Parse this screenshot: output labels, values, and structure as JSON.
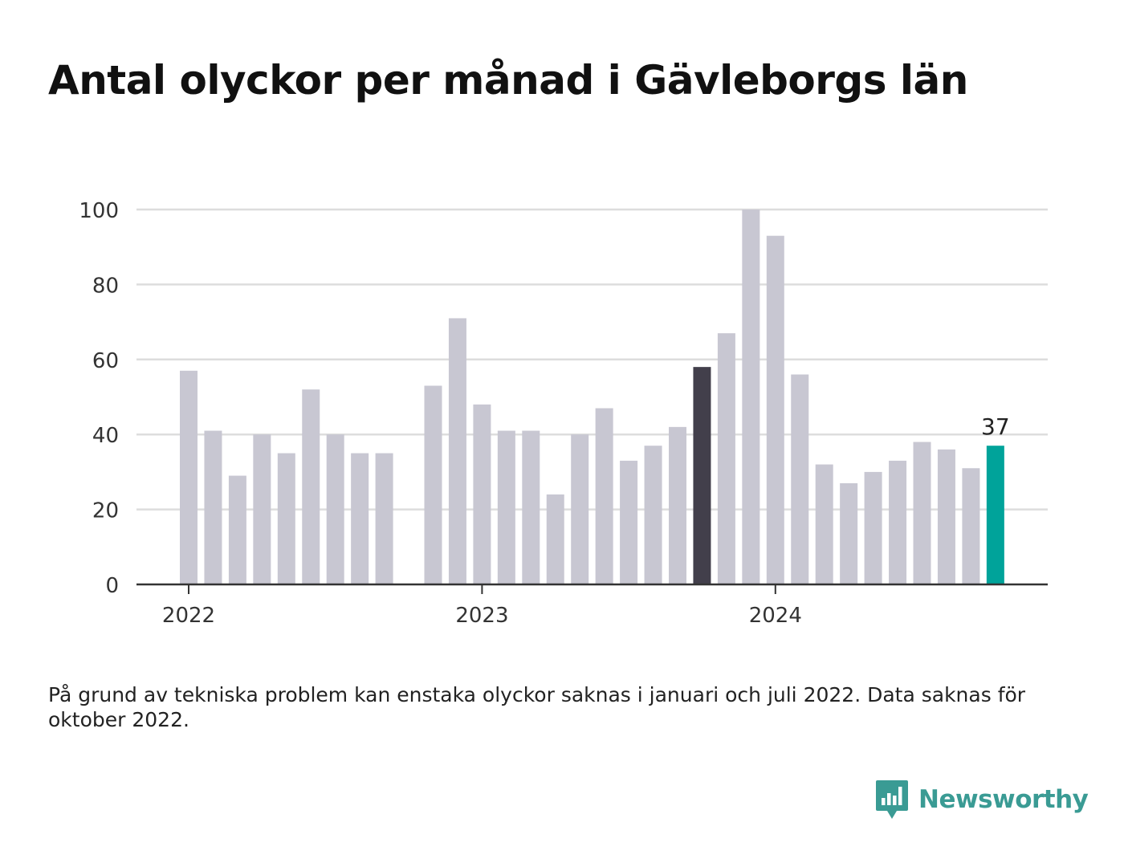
{
  "title": "Antal olyckor per månad i Gävleborgs län",
  "footnote": "På grund av tekniska problem kan enstaka olyckor saknas i januari och juli 2022. Data saknas för oktober 2022.",
  "brand": {
    "name": "Newsworthy",
    "color": "#3a9b94",
    "icon": "bar-chart-speech-bubble-icon"
  },
  "colors": {
    "bar_default": "#c8c7d2",
    "bar_previous_year": "#423f4b",
    "bar_latest": "#00a39a",
    "gridline": "#dddddd",
    "baseline": "#333333"
  },
  "chart_data": {
    "type": "bar",
    "title": "Antal olyckor per månad i Gävleborgs län",
    "xlabel": "",
    "ylabel": "",
    "ylim": [
      0,
      100
    ],
    "yticks": [
      0,
      20,
      40,
      60,
      80,
      100
    ],
    "grid": true,
    "x_tick_labels": [
      {
        "label": "2022",
        "at": "2022-01"
      },
      {
        "label": "2023",
        "at": "2023-01"
      },
      {
        "label": "2024",
        "at": "2024-01"
      }
    ],
    "categories": [
      "2022-01",
      "2022-02",
      "2022-03",
      "2022-04",
      "2022-05",
      "2022-06",
      "2022-07",
      "2022-08",
      "2022-09",
      "2022-10",
      "2022-11",
      "2022-12",
      "2023-01",
      "2023-02",
      "2023-03",
      "2023-04",
      "2023-05",
      "2023-06",
      "2023-07",
      "2023-08",
      "2023-09",
      "2023-10",
      "2023-11",
      "2023-12",
      "2024-01",
      "2024-02",
      "2024-03",
      "2024-04",
      "2024-05",
      "2024-06",
      "2024-07",
      "2024-08",
      "2024-09",
      "2024-10"
    ],
    "values": [
      57,
      41,
      29,
      40,
      35,
      52,
      40,
      35,
      35,
      null,
      53,
      71,
      48,
      41,
      41,
      24,
      40,
      47,
      33,
      37,
      42,
      58,
      67,
      100,
      93,
      56,
      32,
      27,
      30,
      33,
      38,
      36,
      31,
      37
    ],
    "highlights": [
      {
        "category": "2023-10",
        "role": "previous_year"
      },
      {
        "category": "2024-10",
        "role": "latest",
        "label": "37"
      }
    ]
  }
}
